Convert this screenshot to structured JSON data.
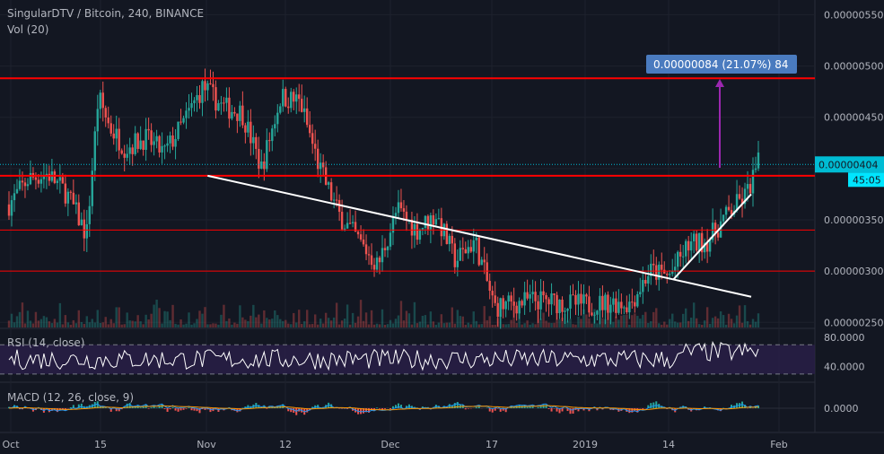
{
  "header": {
    "title": "SingularDTV / Bitcoin, 240, BINANCE",
    "volume_label": "Vol (20)"
  },
  "indicators": {
    "rsi_label": "RSI (14, close)",
    "macd_label": "MACD (12, 26, close, 9)"
  },
  "price_axis": {
    "ticks": [
      "0.00000550",
      "0.00000500",
      "0.00000450",
      "0.00000400",
      "0.00000350",
      "0.00000300",
      "0.00000250"
    ],
    "tick_values": [
      550,
      500,
      450,
      400,
      350,
      300,
      250
    ]
  },
  "rsi_axis": {
    "ticks": [
      "80.0000",
      "40.0000"
    ],
    "tick_values": [
      80,
      40
    ]
  },
  "macd_axis": {
    "ticks": [
      "0.0000"
    ],
    "tick_values": [
      0
    ]
  },
  "time_axis": {
    "labels": [
      "Oct",
      "15",
      "Nov",
      "12",
      "Dec",
      "17",
      "2019",
      "14",
      "Feb"
    ]
  },
  "current_price": {
    "label": "0.00000404",
    "countdown": "45:05",
    "value": 404
  },
  "measure_box": {
    "label": "0.00000084 (21.07%) 84"
  },
  "colors": {
    "background": "#131722",
    "up": "#26a69a",
    "down": "#ef5350",
    "horizontal_levels": "#ff0000",
    "trendline": "#ffffff",
    "rsi_line": "#ffffff",
    "rsi_band": "#2a1f4a",
    "macd_line": "#2196f3",
    "signal_line": "#ff9800",
    "measure_box": "#4a7bbf",
    "measure_arrow": "#9c27b0",
    "current_price_label": "#00bcd4"
  },
  "chart_data": {
    "type": "line",
    "title": "SingularDTV / Bitcoin, 240, BINANCE",
    "y_unit_scale": "1e-8 BTC",
    "ylim": [
      245,
      560
    ],
    "horizontal_levels": [
      488,
      393,
      340,
      300
    ],
    "trendline_descending": [
      [
        5,
        393
      ],
      [
        19,
        275
      ]
    ],
    "trendline_ascending": [
      [
        17,
        292
      ],
      [
        19,
        375
      ]
    ],
    "series": [
      {
        "x": [
          0,
          0.5,
          1,
          1.5,
          2,
          2.3,
          2.6,
          3,
          3.5,
          4,
          4.5,
          5,
          5.5,
          6,
          6.5,
          7,
          7.5,
          8,
          8.5,
          9,
          9.5,
          10,
          10.5,
          11,
          11.5,
          12,
          12.5,
          13,
          13.5,
          14,
          14.5,
          15,
          15.5,
          16,
          16.5,
          17,
          17.5,
          18,
          18.5,
          19,
          19.3
        ],
        "values": [
          365,
          390,
          395,
          375,
          335,
          470,
          440,
          420,
          430,
          415,
          445,
          480,
          460,
          455,
          400,
          470,
          465,
          400,
          355,
          330,
          305,
          360,
          340,
          355,
          310,
          330,
          265,
          268,
          272,
          270,
          268,
          267,
          270,
          268,
          300,
          295,
          325,
          330,
          355,
          375,
          405
        ]
      }
    ]
  }
}
